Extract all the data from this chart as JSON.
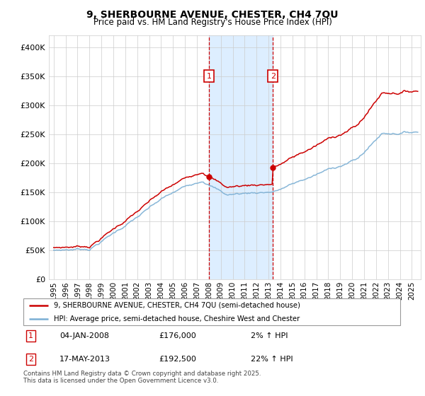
{
  "title": "9, SHERBOURNE AVENUE, CHESTER, CH4 7QU",
  "subtitle": "Price paid vs. HM Land Registry's House Price Index (HPI)",
  "legend_line1": "9, SHERBOURNE AVENUE, CHESTER, CH4 7QU (semi-detached house)",
  "legend_line2": "HPI: Average price, semi-detached house, Cheshire West and Chester",
  "footnote": "Contains HM Land Registry data © Crown copyright and database right 2025.\nThis data is licensed under the Open Government Licence v3.0.",
  "purchase1_date": "04-JAN-2008",
  "purchase1_price": 176000,
  "purchase1_price_str": "£176,000",
  "purchase1_pct": "2% ↑ HPI",
  "purchase2_date": "17-MAY-2013",
  "purchase2_price": 192500,
  "purchase2_price_str": "£192,500",
  "purchase2_pct": "22% ↑ HPI",
  "hpi_color": "#7bafd4",
  "price_color": "#cc0000",
  "shading_color": "#ddeeff",
  "ylim_min": 0,
  "ylim_max": 420000,
  "yticks": [
    0,
    50000,
    100000,
    150000,
    200000,
    250000,
    300000,
    350000,
    400000
  ],
  "background_color": "#ffffff",
  "grid_color": "#cccccc",
  "purchase1_year": 2008.01,
  "purchase2_year": 2013.37
}
